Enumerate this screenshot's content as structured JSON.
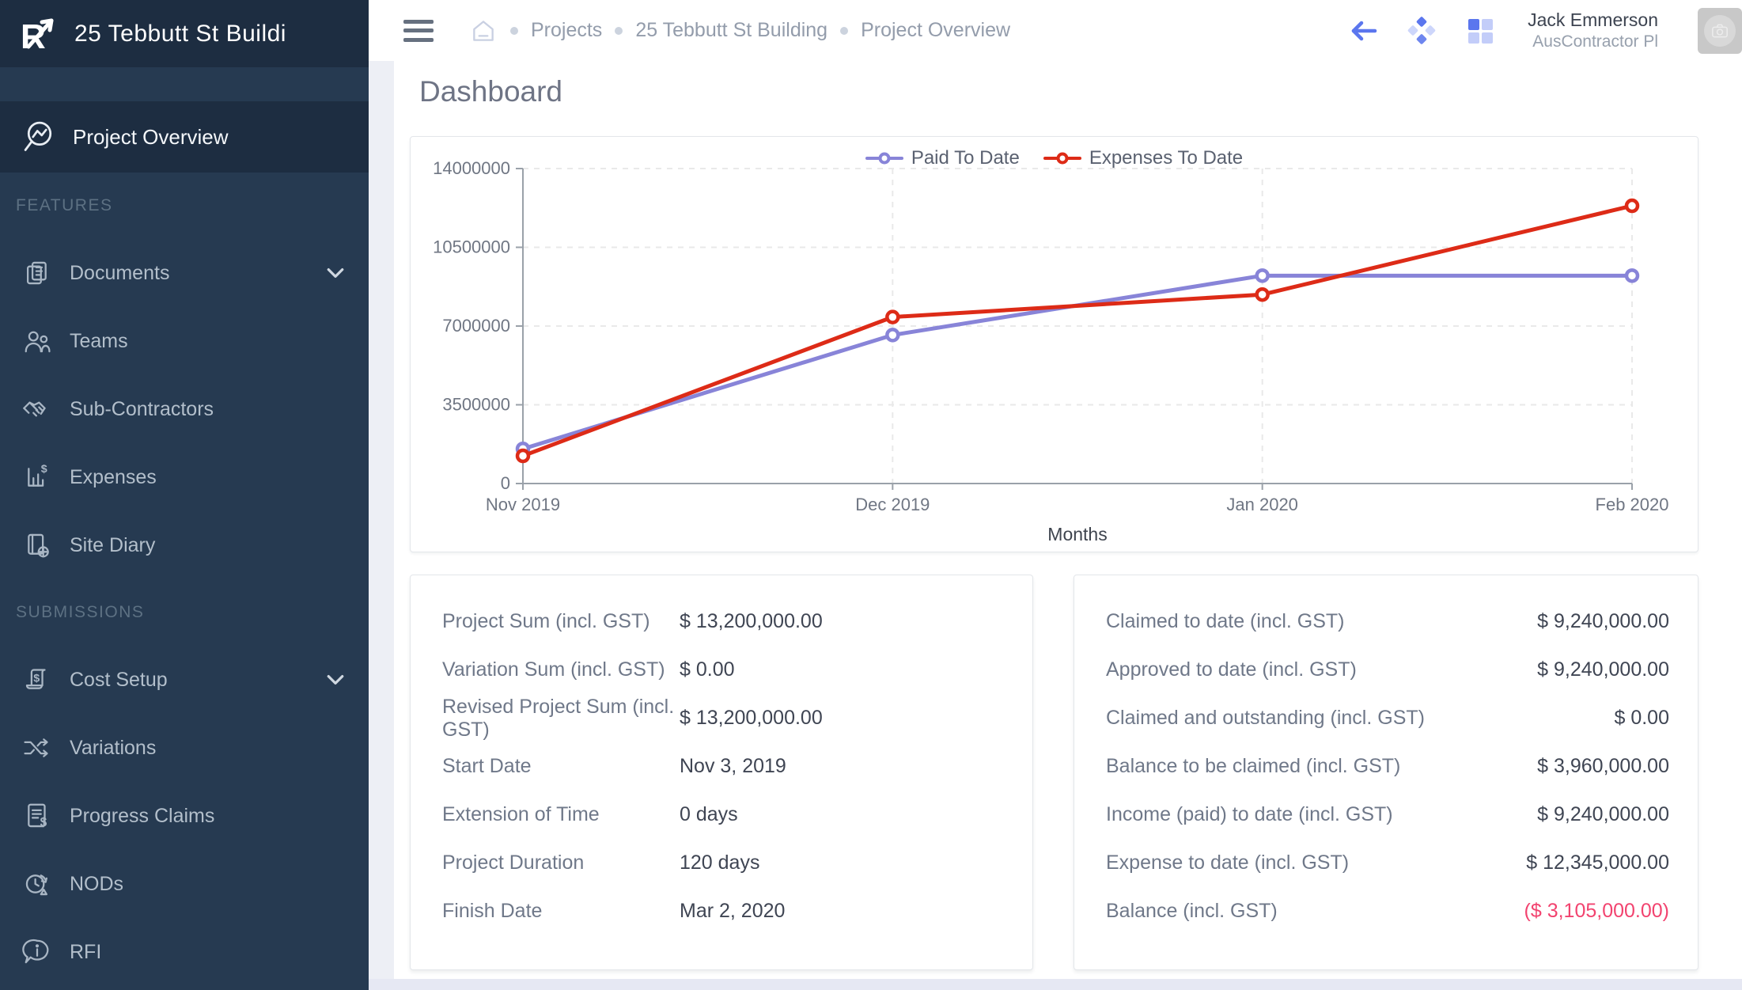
{
  "sidebar": {
    "logo_title": "25 Tebbutt St Buildi",
    "active_item": {
      "label": "Project Overview",
      "icon": "project-overview-icon"
    },
    "sections": [
      {
        "label": "FEATURES",
        "items": [
          {
            "label": "Documents",
            "icon": "documents-icon",
            "chevron": true
          },
          {
            "label": "Teams",
            "icon": "teams-icon"
          },
          {
            "label": "Sub-Contractors",
            "icon": "subcontractors-icon"
          },
          {
            "label": "Expenses",
            "icon": "expenses-icon"
          },
          {
            "label": "Site Diary",
            "icon": "site-diary-icon"
          }
        ]
      },
      {
        "label": "SUBMISSIONS",
        "items": [
          {
            "label": "Cost Setup",
            "icon": "cost-setup-icon",
            "chevron": true
          },
          {
            "label": "Variations",
            "icon": "variations-icon"
          },
          {
            "label": "Progress Claims",
            "icon": "progress-claims-icon"
          },
          {
            "label": "NODs",
            "icon": "nods-icon"
          },
          {
            "label": "RFI",
            "icon": "rfi-icon"
          }
        ]
      }
    ]
  },
  "header": {
    "breadcrumbs": [
      "Projects",
      "25 Tebbutt St Building",
      "Project Overview"
    ],
    "user": {
      "name": "Jack Emmerson",
      "company": "AusContractor Pl"
    }
  },
  "page": {
    "title": "Dashboard"
  },
  "chart_data": {
    "type": "line",
    "x": [
      "Nov 2019",
      "Dec 2019",
      "Jan 2020",
      "Feb 2020"
    ],
    "xlabel": "Months",
    "ylim": [
      0,
      14000000
    ],
    "yticks": [
      0,
      3500000,
      7000000,
      10500000,
      14000000
    ],
    "grid": true,
    "legend_position": "top",
    "series": [
      {
        "name": "Paid To Date",
        "color": "#8884d8",
        "values": [
          1540000,
          6600000,
          9240000,
          9240000
        ]
      },
      {
        "name": "Expenses To Date",
        "color": "#dd2b17",
        "values": [
          1230000,
          7400000,
          8400000,
          12345000
        ]
      }
    ]
  },
  "summary_left": {
    "rows": [
      {
        "label": "Project Sum (incl. GST)",
        "value": "$ 13,200,000.00"
      },
      {
        "label": "Variation Sum (incl. GST)",
        "value": "$ 0.00"
      },
      {
        "label": "Revised Project Sum (incl. GST)",
        "value": "$ 13,200,000.00"
      },
      {
        "label": "Start Date",
        "value": "Nov 3, 2019"
      },
      {
        "label": "Extension of Time",
        "value": "0 days"
      },
      {
        "label": "Project Duration",
        "value": "120 days"
      },
      {
        "label": "Finish Date",
        "value": "Mar 2, 2020"
      }
    ]
  },
  "summary_right": {
    "rows": [
      {
        "label": "Claimed to date (incl. GST)",
        "value": "$ 9,240,000.00"
      },
      {
        "label": "Approved to date (incl. GST)",
        "value": "$ 9,240,000.00"
      },
      {
        "label": "Claimed and outstanding (incl. GST)",
        "value": "$ 0.00"
      },
      {
        "label": "Balance to be claimed (incl. GST)",
        "value": "$ 3,960,000.00"
      },
      {
        "label": "Income (paid) to date (incl. GST)",
        "value": "$ 9,240,000.00"
      },
      {
        "label": "Expense to date (incl. GST)",
        "value": "$ 12,345,000.00"
      },
      {
        "label": "Balance (incl. GST)",
        "value": "($ 3,105,000.00)",
        "negative": true
      }
    ]
  },
  "colors": {
    "sidebar_bg": "#263a51",
    "sidebar_active_bg": "#1d2d41",
    "accent_blue": "#5b76ee",
    "negative_value": "#f2436f",
    "paid_line": "#8884d8",
    "expenses_line": "#dd2b17"
  }
}
